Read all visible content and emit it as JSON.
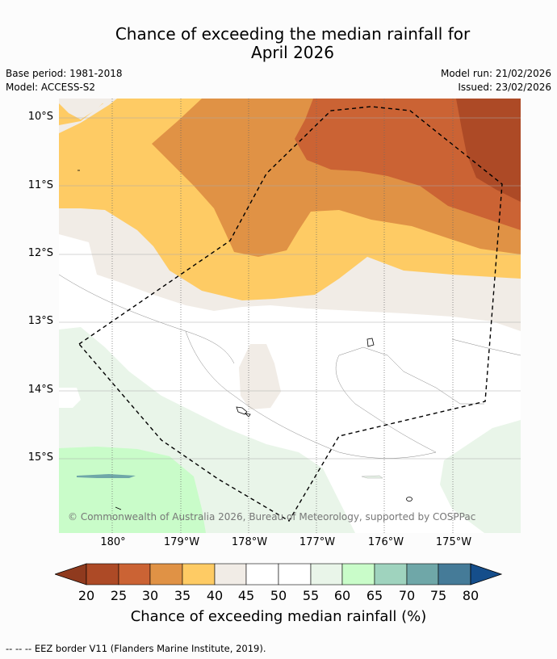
{
  "title": {
    "line1": "Chance of exceeding the median rainfall for",
    "line2": "April 2026"
  },
  "meta": {
    "base_period": "Base period: 1981-2018",
    "model": "Model: ACCESS-S2",
    "model_run": "Model run: 21/02/2026",
    "issued": "Issued: 23/02/2026"
  },
  "axes": {
    "lat_labels": [
      "10°S",
      "11°S",
      "12°S",
      "13°S",
      "14°S",
      "15°S"
    ],
    "lon_labels": [
      "180°",
      "179°W",
      "178°W",
      "177°W",
      "176°W",
      "175°W"
    ]
  },
  "copyright": "© Commonwealth of Australia 2026, Bureau of Meteorology, supported by COSPPac",
  "colorbar": {
    "title": "Chance of exceeding median rainfall (%)",
    "ticks": [
      "20",
      "25",
      "30",
      "35",
      "40",
      "45",
      "50",
      "55",
      "60",
      "65",
      "70",
      "75",
      "80"
    ],
    "colors": {
      "below_20": "#8f3a1e",
      "c20_25": "#ad4a26",
      "c25_30": "#cb6334",
      "c30_35": "#e09245",
      "c35_40": "#fecb64",
      "c40_45": "#f1ece6",
      "c45_55": "#ffffff",
      "c55_60": "#e9f5e9",
      "c60_65": "#c9fcc9",
      "c65_70": "#9fd3be",
      "c70_75": "#6fa7a8",
      "c75_80": "#457b98",
      "above_80": "#154e8b"
    }
  },
  "footer": "--  --  -- EEZ border V11 (Flanders Marine Institute, 2019)."
}
